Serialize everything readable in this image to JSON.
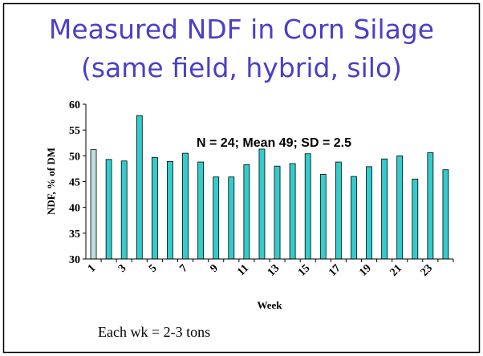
{
  "chart_data": {
    "type": "bar",
    "title": "Measured NDF in Corn Silage",
    "subtitle": "(same field, hybrid, silo)",
    "annotation": "N = 24; Mean 49; SD = 2.5",
    "footnote": "Each wk = 2-3 tons",
    "x_label": "Week",
    "y_label": "NDF, % of DM",
    "categories": [
      "1",
      null,
      "3",
      null,
      "5",
      null,
      "7",
      null,
      "9",
      null,
      "11",
      null,
      "13",
      null,
      "15",
      null,
      "17",
      null,
      "19",
      null,
      "21",
      null,
      "23",
      null
    ],
    "values": [
      51.2,
      49.3,
      49,
      57.8,
      49.7,
      48.9,
      50.5,
      48.8,
      45.9,
      45.9,
      48.3,
      51.3,
      48,
      48.5,
      50.4,
      46.4,
      48.8,
      46,
      47.9,
      49.4,
      50,
      45.5,
      50.6,
      47.3
    ],
    "colors": [
      "#c0dcdc",
      "#33cccc",
      "#33cccc",
      "#33cccc",
      "#33cccc",
      "#33cccc",
      "#33cccc",
      "#33cccc",
      "#33cccc",
      "#33cccc",
      "#33cccc",
      "#33cccc",
      "#33cccc",
      "#33cccc",
      "#33cccc",
      "#33cccc",
      "#33cccc",
      "#33cccc",
      "#33cccc",
      "#33cccc",
      "#33cccc",
      "#33cccc",
      "#33cccc",
      "#33cccc"
    ],
    "ylim": [
      30,
      60
    ],
    "yticks": [
      30,
      35,
      40,
      45,
      50,
      55,
      60
    ],
    "grid": false
  }
}
